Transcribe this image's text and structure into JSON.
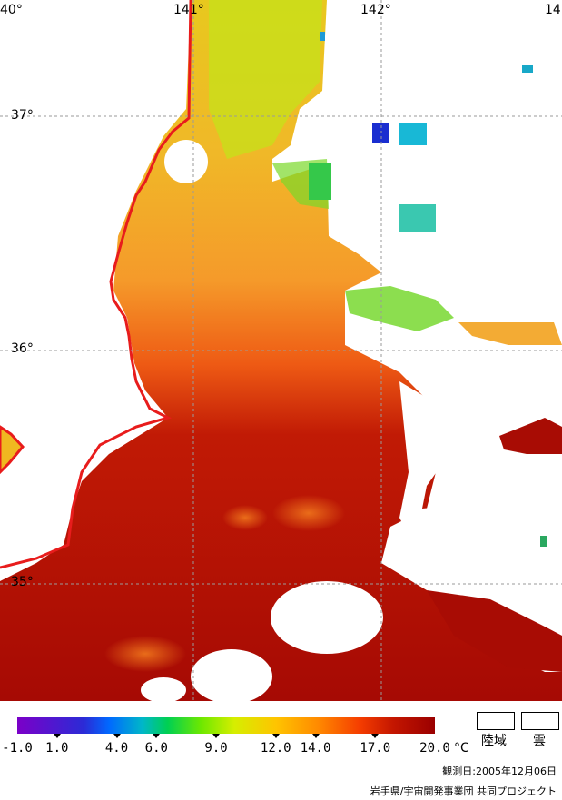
{
  "map": {
    "longitude_labels": [
      "40°",
      "141°",
      "142°",
      "14"
    ],
    "latitude_labels": [
      "37°",
      "36°",
      "35°"
    ],
    "coast_color": "#e81c1c",
    "grid_color": "#9a9a9a"
  },
  "legend": {
    "ticks": [
      "-1.0",
      "1.0",
      "4.0",
      "6.0",
      "9.0",
      "12.0",
      "14.0",
      "17.0",
      "20.0"
    ],
    "tick_values": [
      -1.0,
      1.0,
      4.0,
      6.0,
      9.0,
      12.0,
      14.0,
      17.0,
      20.0
    ],
    "unit": "°C",
    "land_label": "陸域",
    "cloud_label": "雲"
  },
  "observation_date": "観測日:2005年12月06日",
  "credit": "岩手県/宇宙開発事業団 共同プロジェクト"
}
